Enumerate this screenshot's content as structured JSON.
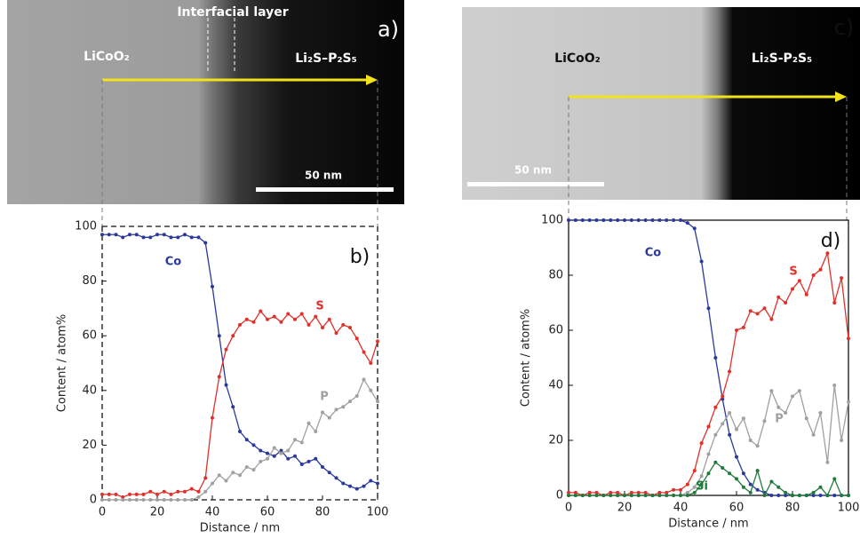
{
  "images": [
    {
      "label": "a)",
      "texts": [
        "LiCoO₂",
        "Interfacial layer",
        "Li₂S–P₂S₅"
      ],
      "scale_bar": "50 nm"
    },
    {
      "label": "c)",
      "texts": [
        "LiCoO₂",
        "Li₂S-P₂S₅"
      ],
      "scale_bar": "50 nm"
    }
  ],
  "chart_data": [
    {
      "type": "line",
      "panel_label": "b)",
      "x_label": "Distance / nm",
      "y_label": "Content / atom%",
      "xlim": [
        0,
        100
      ],
      "ylim": [
        0,
        100
      ],
      "xticks": [
        0,
        20,
        40,
        60,
        80,
        100
      ],
      "yticks": [
        0,
        20,
        40,
        60,
        80,
        100
      ],
      "x": [
        0,
        2.5,
        5,
        7.5,
        10,
        12.5,
        15,
        17.5,
        20,
        22.5,
        25,
        27.5,
        30,
        32.5,
        35,
        37.5,
        40,
        42.5,
        45,
        47.5,
        50,
        52.5,
        55,
        57.5,
        60,
        62.5,
        65,
        67.5,
        70,
        72.5,
        75,
        77.5,
        80,
        82.5,
        85,
        87.5,
        90,
        92.5,
        95,
        97.5,
        100
      ],
      "series": [
        {
          "name": "Co",
          "color": "#2b3a9a",
          "values": [
            97,
            97,
            97,
            96,
            97,
            97,
            96,
            96,
            97,
            97,
            96,
            96,
            97,
            96,
            96,
            94,
            78,
            60,
            42,
            34,
            25,
            22,
            20,
            18,
            17,
            16,
            18,
            15,
            16,
            13,
            14,
            15,
            12,
            10,
            8,
            6,
            5,
            4,
            5,
            7,
            6
          ]
        },
        {
          "name": "S",
          "color": "#e0302a",
          "values": [
            2,
            2,
            2,
            1,
            2,
            2,
            2,
            3,
            2,
            3,
            2,
            3,
            3,
            4,
            3,
            8,
            30,
            45,
            55,
            60,
            64,
            66,
            65,
            69,
            66,
            67,
            65,
            68,
            66,
            68,
            64,
            67,
            63,
            66,
            61,
            64,
            63,
            59,
            54,
            50,
            58
          ]
        },
        {
          "name": "P",
          "color": "#a0a0a0",
          "values": [
            0,
            0,
            0,
            0,
            0,
            0,
            0,
            0,
            0,
            0,
            0,
            0,
            0,
            0,
            1,
            3,
            6,
            9,
            7,
            10,
            9,
            12,
            11,
            14,
            15,
            19,
            17,
            18,
            22,
            21,
            28,
            25,
            32,
            30,
            33,
            34,
            36,
            38,
            44,
            40,
            36
          ]
        }
      ]
    },
    {
      "type": "line",
      "panel_label": "d)",
      "x_label": "Distance / nm",
      "y_label": "Content / atom%",
      "xlim": [
        0,
        100
      ],
      "ylim": [
        0,
        100
      ],
      "xticks": [
        0,
        20,
        40,
        60,
        80,
        100
      ],
      "yticks": [
        0,
        20,
        40,
        60,
        80,
        100
      ],
      "x": [
        0,
        2.5,
        5,
        7.5,
        10,
        12.5,
        15,
        17.5,
        20,
        22.5,
        25,
        27.5,
        30,
        32.5,
        35,
        37.5,
        40,
        42.5,
        45,
        47.5,
        50,
        52.5,
        55,
        57.5,
        60,
        62.5,
        65,
        67.5,
        70,
        72.5,
        75,
        77.5,
        80,
        82.5,
        85,
        87.5,
        90,
        92.5,
        95,
        97.5,
        100
      ],
      "series": [
        {
          "name": "Co",
          "color": "#2b3a9a",
          "values": [
            100,
            100,
            100,
            100,
            100,
            100,
            100,
            100,
            100,
            100,
            100,
            100,
            100,
            100,
            100,
            100,
            100,
            99,
            97,
            85,
            68,
            50,
            35,
            22,
            14,
            8,
            4,
            2,
            1,
            0,
            0,
            0,
            0,
            0,
            0,
            0,
            0,
            0,
            0,
            0,
            0
          ]
        },
        {
          "name": "S",
          "color": "#e0302a",
          "values": [
            1,
            1,
            0,
            1,
            1,
            0,
            1,
            1,
            0,
            1,
            1,
            1,
            0,
            1,
            1,
            2,
            2,
            4,
            9,
            19,
            25,
            32,
            36,
            45,
            60,
            61,
            67,
            66,
            68,
            64,
            72,
            70,
            75,
            78,
            73,
            80,
            82,
            88,
            70,
            79,
            57
          ]
        },
        {
          "name": "P",
          "color": "#a0a0a0",
          "values": [
            0,
            0,
            0,
            0,
            0,
            0,
            0,
            0,
            0,
            0,
            0,
            0,
            0,
            0,
            0,
            0,
            0,
            1,
            3,
            7,
            15,
            22,
            26,
            30,
            24,
            28,
            20,
            18,
            27,
            38,
            32,
            30,
            36,
            38,
            28,
            22,
            30,
            12,
            40,
            20,
            34
          ]
        },
        {
          "name": "Si",
          "color": "#1f7a3a",
          "values": [
            0,
            0,
            0,
            0,
            0,
            0,
            0,
            0,
            0,
            0,
            0,
            0,
            0,
            0,
            0,
            0,
            0,
            0,
            1,
            4,
            8,
            12,
            10,
            8,
            6,
            3,
            1,
            9,
            0,
            5,
            3,
            1,
            0,
            0,
            0,
            1,
            3,
            0,
            6,
            0,
            0
          ]
        }
      ]
    }
  ]
}
